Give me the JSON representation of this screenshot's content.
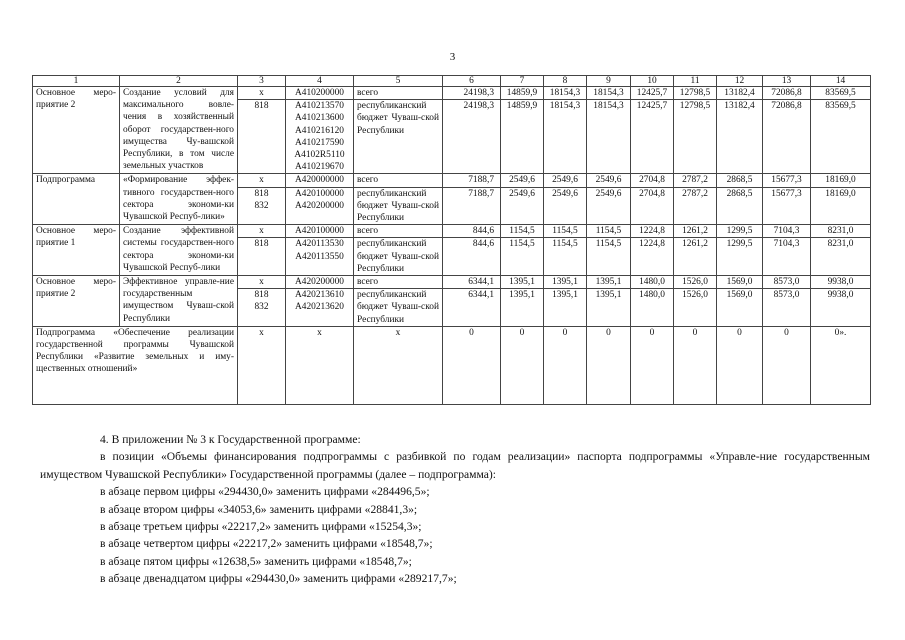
{
  "page_number": "3",
  "table": {
    "headers": [
      "1",
      "2",
      "3",
      "4",
      "5",
      "6",
      "7",
      "8",
      "9",
      "10",
      "11",
      "12",
      "13",
      "14"
    ],
    "groups": [
      {
        "col1": "Основное меро-приятие 2",
        "col2": "Создание условий для максимального вовле-чения в хозяйственный оборот государствен-ного имущества Чу-вашской Республики, в том числе земельных участков",
        "total": {
          "col3": "x",
          "col4": "A410200000",
          "col5": "всего",
          "values": [
            "24198,3",
            "14859,9",
            "18154,3",
            "18154,3",
            "12425,7",
            "12798,5",
            "13182,4",
            "72086,8",
            "83569,5"
          ]
        },
        "sub": {
          "col3": "818",
          "col4": "A410213570\nA410213600\nA410216120\nA410217590\nA4102R5110\nA410219670",
          "col5": "республиканский бюджет Чуваш-ской Республики",
          "values": [
            "24198,3",
            "14859,9",
            "18154,3",
            "18154,3",
            "12425,7",
            "12798,5",
            "13182,4",
            "72086,8",
            "83569,5"
          ]
        }
      },
      {
        "col1": "Подпрограмма",
        "col2": "«Формирование эффек-тивного государствен-ного сектора экономи-ки Чувашской Респуб-лики»",
        "total": {
          "col3": "x",
          "col4": "A420000000",
          "col5": "всего",
          "values": [
            "7188,7",
            "2549,6",
            "2549,6",
            "2549,6",
            "2704,8",
            "2787,2",
            "2868,5",
            "15677,3",
            "18169,0"
          ]
        },
        "sub": {
          "col3": "818\n832",
          "col4": "A420100000\nA420200000",
          "col5": "республиканский бюджет Чуваш-ской Республики",
          "values": [
            "7188,7",
            "2549,6",
            "2549,6",
            "2549,6",
            "2704,8",
            "2787,2",
            "2868,5",
            "15677,3",
            "18169,0"
          ]
        }
      },
      {
        "col1": "Основное меро-приятие 1",
        "col2": "Создание эффективной системы государствен-ного сектора экономи-ки Чувашской Респуб-лики",
        "total": {
          "col3": "x",
          "col4": "A420100000",
          "col5": "всего",
          "values": [
            "844,6",
            "1154,5",
            "1154,5",
            "1154,5",
            "1224,8",
            "1261,2",
            "1299,5",
            "7104,3",
            "8231,0"
          ]
        },
        "sub": {
          "col3": "818",
          "col4": "A420113530\nA420113550",
          "col5": "республиканский бюджет Чуваш-ской Республики",
          "values": [
            "844,6",
            "1154,5",
            "1154,5",
            "1154,5",
            "1224,8",
            "1261,2",
            "1299,5",
            "7104,3",
            "8231,0"
          ]
        }
      },
      {
        "col1": "Основное меро-приятие 2",
        "col2": "Эффективное управле-ние государственным имуществом Чуваш-ской Республики",
        "total": {
          "col3": "x",
          "col4": "A420200000",
          "col5": "всего",
          "values": [
            "6344,1",
            "1395,1",
            "1395,1",
            "1395,1",
            "1480,0",
            "1526,0",
            "1569,0",
            "8573,0",
            "9938,0"
          ]
        },
        "sub": {
          "col3": "818\n832",
          "col4": "A420213610\nA420213620",
          "col5": "республиканский бюджет Чуваш-ской Республики",
          "values": [
            "6344,1",
            "1395,1",
            "1395,1",
            "1395,1",
            "1480,0",
            "1526,0",
            "1569,0",
            "8573,0",
            "9938,0"
          ]
        }
      }
    ],
    "last_row": {
      "col12": "Подпрограмма «Обеспечение реализации государственной программы Чувашской Республики «Развитие земельных и иму-щественных отношений»",
      "col3": "x",
      "col4": "x",
      "col5": "x",
      "values": [
        "0",
        "0",
        "0",
        "0",
        "0",
        "0",
        "0",
        "0",
        "0»."
      ]
    }
  },
  "paragraphs": [
    "4. В приложении № 3 к Государственной программе:",
    "в позиции «Объемы финансирования подпрограммы с разбивкой по годам реализации» паспорта подпрограммы «Управле-ние государственным имуществом Чувашской Республики» Государственной программы (далее – подпрограмма):",
    "в абзаце первом цифры «294430,0» заменить цифрами «284496,5»;",
    "в абзаце втором цифры «34053,6» заменить цифрами «28841,3»;",
    "в абзаце третьем цифры «22217,2» заменить цифрами «15254,3»;",
    "в абзаце четвертом цифры «22217,2» заменить цифрами «18548,7»;",
    "в абзаце пятом цифры «12638,5» заменить цифрами «18548,7»;",
    "в абзаце двенадцатом цифры «294430,0» заменить цифрами «289217,7»;"
  ]
}
